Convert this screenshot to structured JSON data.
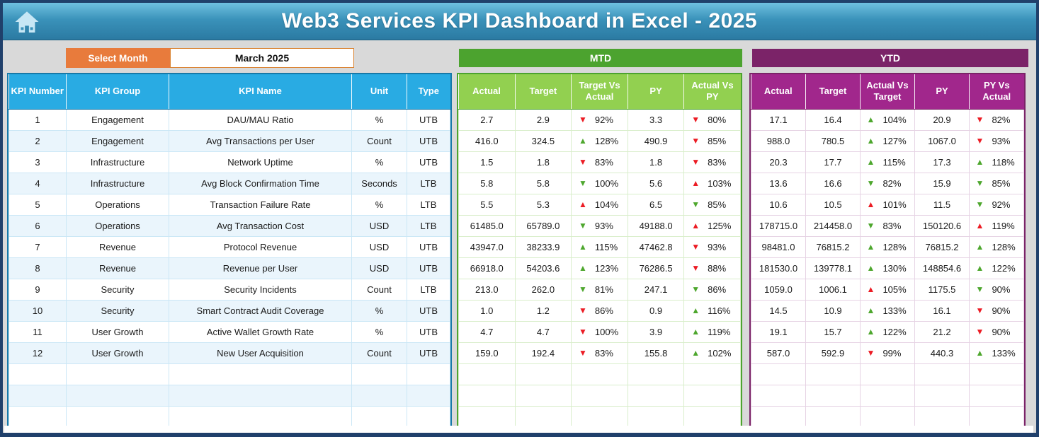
{
  "header": {
    "title": "Web3 Services KPI Dashboard in Excel - 2025"
  },
  "controls": {
    "select_month_label": "Select Month",
    "selected_month": "March 2025"
  },
  "sections": {
    "mtd_label": "MTD",
    "ytd_label": "YTD"
  },
  "icons": {
    "home": "home-icon",
    "arrow_up": "▲",
    "arrow_down": "▼"
  },
  "colors": {
    "info_header_blue": "#29ABE3",
    "mtd_banner_green": "#4CA32F",
    "mtd_header_green": "#92D050",
    "ytd_banner_purple": "#7B2368",
    "ytd_header_magenta": "#A1278C",
    "select_month_orange": "#E87B3C",
    "arrow_green": "#4EA72E",
    "arrow_red": "#EC1C24"
  },
  "info_table": {
    "headers": [
      "KPI Number",
      "KPI Group",
      "KPI Name",
      "Unit",
      "Type"
    ],
    "empty_rows": 3,
    "rows": [
      [
        "1",
        "Engagement",
        "DAU/MAU Ratio",
        "%",
        "UTB"
      ],
      [
        "2",
        "Engagement",
        "Avg Transactions per User",
        "Count",
        "UTB"
      ],
      [
        "3",
        "Infrastructure",
        "Network Uptime",
        "%",
        "UTB"
      ],
      [
        "4",
        "Infrastructure",
        "Avg Block Confirmation Time",
        "Seconds",
        "LTB"
      ],
      [
        "5",
        "Operations",
        "Transaction Failure Rate",
        "%",
        "LTB"
      ],
      [
        "6",
        "Operations",
        "Avg Transaction Cost",
        "USD",
        "LTB"
      ],
      [
        "7",
        "Revenue",
        "Protocol Revenue",
        "USD",
        "UTB"
      ],
      [
        "8",
        "Revenue",
        "Revenue per User",
        "USD",
        "UTB"
      ],
      [
        "9",
        "Security",
        "Security Incidents",
        "Count",
        "LTB"
      ],
      [
        "10",
        "Security",
        "Smart Contract Audit Coverage",
        "%",
        "UTB"
      ],
      [
        "11",
        "User Growth",
        "Active Wallet Growth Rate",
        "%",
        "UTB"
      ],
      [
        "12",
        "User Growth",
        "New User Acquisition",
        "Count",
        "UTB"
      ]
    ]
  },
  "mtd_table": {
    "headers": [
      "Actual",
      "Target",
      "Target Vs Actual",
      "PY",
      "Actual Vs PY"
    ],
    "empty_rows": 3,
    "rows": [
      [
        "2.7",
        "2.9",
        {
          "dir": "down",
          "color": "red",
          "value": "92%"
        },
        "3.3",
        {
          "dir": "down",
          "color": "red",
          "value": "80%"
        }
      ],
      [
        "416.0",
        "324.5",
        {
          "dir": "up",
          "color": "green",
          "value": "128%"
        },
        "490.9",
        {
          "dir": "down",
          "color": "red",
          "value": "85%"
        }
      ],
      [
        "1.5",
        "1.8",
        {
          "dir": "down",
          "color": "red",
          "value": "83%"
        },
        "1.8",
        {
          "dir": "down",
          "color": "red",
          "value": "83%"
        }
      ],
      [
        "5.8",
        "5.8",
        {
          "dir": "down",
          "color": "green",
          "value": "100%"
        },
        "5.6",
        {
          "dir": "up",
          "color": "red",
          "value": "103%"
        }
      ],
      [
        "5.5",
        "5.3",
        {
          "dir": "up",
          "color": "red",
          "value": "104%"
        },
        "6.5",
        {
          "dir": "down",
          "color": "green",
          "value": "85%"
        }
      ],
      [
        "61485.0",
        "65789.0",
        {
          "dir": "down",
          "color": "green",
          "value": "93%"
        },
        "49188.0",
        {
          "dir": "up",
          "color": "red",
          "value": "125%"
        }
      ],
      [
        "43947.0",
        "38233.9",
        {
          "dir": "up",
          "color": "green",
          "value": "115%"
        },
        "47462.8",
        {
          "dir": "down",
          "color": "red",
          "value": "93%"
        }
      ],
      [
        "66918.0",
        "54203.6",
        {
          "dir": "up",
          "color": "green",
          "value": "123%"
        },
        "76286.5",
        {
          "dir": "down",
          "color": "red",
          "value": "88%"
        }
      ],
      [
        "213.0",
        "262.0",
        {
          "dir": "down",
          "color": "green",
          "value": "81%"
        },
        "247.1",
        {
          "dir": "down",
          "color": "green",
          "value": "86%"
        }
      ],
      [
        "1.0",
        "1.2",
        {
          "dir": "down",
          "color": "red",
          "value": "86%"
        },
        "0.9",
        {
          "dir": "up",
          "color": "green",
          "value": "116%"
        }
      ],
      [
        "4.7",
        "4.7",
        {
          "dir": "down",
          "color": "red",
          "value": "100%"
        },
        "3.9",
        {
          "dir": "up",
          "color": "green",
          "value": "119%"
        }
      ],
      [
        "159.0",
        "192.4",
        {
          "dir": "down",
          "color": "red",
          "value": "83%"
        },
        "155.8",
        {
          "dir": "up",
          "color": "green",
          "value": "102%"
        }
      ]
    ]
  },
  "ytd_table": {
    "headers": [
      "Actual",
      "Target",
      "Actual Vs Target",
      "PY",
      "PY Vs Actual"
    ],
    "empty_rows": 3,
    "rows": [
      [
        "17.1",
        "16.4",
        {
          "dir": "up",
          "color": "green",
          "value": "104%"
        },
        "20.9",
        {
          "dir": "down",
          "color": "red",
          "value": "82%"
        }
      ],
      [
        "988.0",
        "780.5",
        {
          "dir": "up",
          "color": "green",
          "value": "127%"
        },
        "1067.0",
        {
          "dir": "down",
          "color": "red",
          "value": "93%"
        }
      ],
      [
        "20.3",
        "17.7",
        {
          "dir": "up",
          "color": "green",
          "value": "115%"
        },
        "17.3",
        {
          "dir": "up",
          "color": "green",
          "value": "118%"
        }
      ],
      [
        "13.6",
        "16.6",
        {
          "dir": "down",
          "color": "green",
          "value": "82%"
        },
        "15.9",
        {
          "dir": "down",
          "color": "green",
          "value": "85%"
        }
      ],
      [
        "10.6",
        "10.5",
        {
          "dir": "up",
          "color": "red",
          "value": "101%"
        },
        "11.5",
        {
          "dir": "down",
          "color": "green",
          "value": "92%"
        }
      ],
      [
        "178715.0",
        "214458.0",
        {
          "dir": "down",
          "color": "green",
          "value": "83%"
        },
        "150120.6",
        {
          "dir": "up",
          "color": "red",
          "value": "119%"
        }
      ],
      [
        "98481.0",
        "76815.2",
        {
          "dir": "up",
          "color": "green",
          "value": "128%"
        },
        "76815.2",
        {
          "dir": "up",
          "color": "green",
          "value": "128%"
        }
      ],
      [
        "181530.0",
        "139778.1",
        {
          "dir": "up",
          "color": "green",
          "value": "130%"
        },
        "148854.6",
        {
          "dir": "up",
          "color": "green",
          "value": "122%"
        }
      ],
      [
        "1059.0",
        "1006.1",
        {
          "dir": "up",
          "color": "red",
          "value": "105%"
        },
        "1175.5",
        {
          "dir": "down",
          "color": "green",
          "value": "90%"
        }
      ],
      [
        "14.5",
        "10.9",
        {
          "dir": "up",
          "color": "green",
          "value": "133%"
        },
        "16.1",
        {
          "dir": "down",
          "color": "red",
          "value": "90%"
        }
      ],
      [
        "19.1",
        "15.7",
        {
          "dir": "up",
          "color": "green",
          "value": "122%"
        },
        "21.2",
        {
          "dir": "down",
          "color": "red",
          "value": "90%"
        }
      ],
      [
        "587.0",
        "592.9",
        {
          "dir": "down",
          "color": "red",
          "value": "99%"
        },
        "440.3",
        {
          "dir": "up",
          "color": "green",
          "value": "133%"
        }
      ]
    ]
  }
}
